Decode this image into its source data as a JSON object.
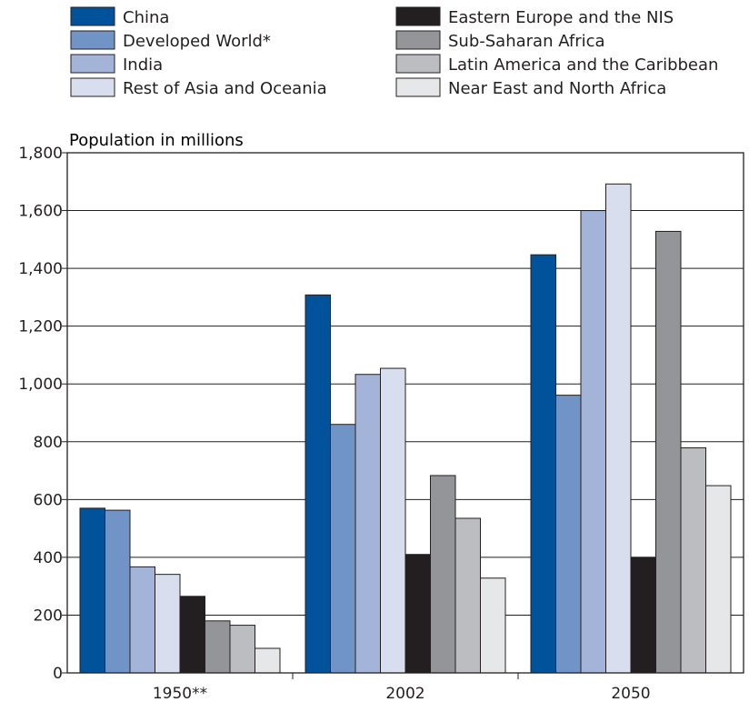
{
  "chart_data": {
    "type": "bar",
    "title": "",
    "xlabel": "",
    "ylabel": "Population in millions",
    "ylim": [
      0,
      1800
    ],
    "yticks": [
      0,
      200,
      400,
      600,
      800,
      1000,
      1200,
      1400,
      1600,
      1800
    ],
    "ytick_labels": [
      "0",
      "200",
      "400",
      "600",
      "800",
      "1,000",
      "1,200",
      "1,400",
      "1,600",
      "1,800"
    ],
    "grid": "horizontal",
    "legend_position": "top",
    "categories": [
      "1950**",
      "2002",
      "2050"
    ],
    "series": [
      {
        "name": "China",
        "color": "#00529b",
        "values": [
          570,
          1308,
          1447
        ]
      },
      {
        "name": "Developed World*",
        "color": "#7094c5",
        "values": [
          563,
          860,
          961
        ]
      },
      {
        "name": "India",
        "color": "#a4b4d8",
        "values": [
          367,
          1033,
          1600
        ]
      },
      {
        "name": "Rest of Asia and Oceania",
        "color": "#d9deee",
        "values": [
          341,
          1054,
          1692
        ]
      },
      {
        "name": "Eastern Europe and the NIS",
        "color": "#231f20",
        "values": [
          265,
          410,
          400
        ]
      },
      {
        "name": "Sub-Saharan Africa",
        "color": "#939598",
        "values": [
          180,
          683,
          1528
        ]
      },
      {
        "name": "Latin America and the Caribbean",
        "color": "#bcbdc0",
        "values": [
          165,
          535,
          779
        ]
      },
      {
        "name": "Near East and North Africa",
        "color": "#e6e7e8",
        "values": [
          85,
          328,
          648
        ]
      }
    ]
  }
}
